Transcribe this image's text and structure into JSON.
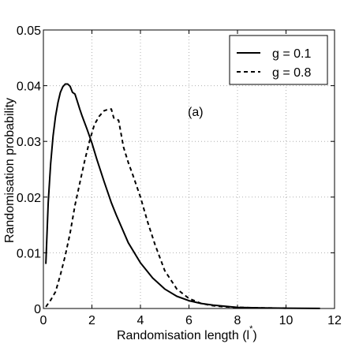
{
  "chart_data": {
    "type": "line",
    "xlabel": "Randomisation length (l",
    "xlabel_super": "*",
    "xlabel_close": ")",
    "ylabel": "Randomisation probability",
    "xlim": [
      0,
      12
    ],
    "ylim": [
      0,
      0.05
    ],
    "xticks": [
      0,
      2,
      4,
      6,
      8,
      10,
      12
    ],
    "xtick_labels": [
      "0",
      "2",
      "4",
      "6",
      "8",
      "10",
      "12"
    ],
    "yticks": [
      0,
      0.01,
      0.02,
      0.03,
      0.04,
      0.05
    ],
    "ytick_labels": [
      "0",
      "0.01",
      "0.02",
      "0.03",
      "0.04",
      "0.05"
    ],
    "grid": true,
    "legend_position": "top-right",
    "annotation": "(a)",
    "series": [
      {
        "name": "g = 0.1",
        "style": "solid",
        "x": [
          0.1,
          0.2,
          0.3,
          0.4,
          0.5,
          0.6,
          0.7,
          0.8,
          0.9,
          1.0,
          1.1,
          1.2,
          1.3,
          1.4,
          1.5,
          1.6,
          1.8,
          2.0,
          2.2,
          2.5,
          2.8,
          3.0,
          3.5,
          4.0,
          4.5,
          5.0,
          5.5,
          6.0,
          6.5,
          7.0,
          8.0,
          9.0,
          10.0,
          11.4
        ],
        "y": [
          0.008,
          0.019,
          0.026,
          0.031,
          0.0345,
          0.037,
          0.0388,
          0.0398,
          0.0403,
          0.0403,
          0.0399,
          0.0388,
          0.0385,
          0.0372,
          0.0358,
          0.0345,
          0.0322,
          0.0297,
          0.0268,
          0.0228,
          0.019,
          0.0168,
          0.0118,
          0.0082,
          0.0055,
          0.0035,
          0.0022,
          0.0014,
          0.0009,
          0.0006,
          0.0002,
          0.0001,
          5e-05,
          2e-05
        ]
      },
      {
        "name": "g = 0.8",
        "style": "dashed",
        "x": [
          0.1,
          0.3,
          0.5,
          0.7,
          0.9,
          1.1,
          1.3,
          1.5,
          1.7,
          1.9,
          2.1,
          2.3,
          2.5,
          2.7,
          2.8,
          2.9,
          3.1,
          3.3,
          3.5,
          3.7,
          4.0,
          4.3,
          4.6,
          5.0,
          5.5,
          6.0,
          6.5,
          7.0,
          7.5,
          8.0,
          9.0,
          10.0
        ],
        "y": [
          0.0003,
          0.0015,
          0.003,
          0.006,
          0.0095,
          0.0135,
          0.0185,
          0.0225,
          0.0265,
          0.03,
          0.033,
          0.0345,
          0.0355,
          0.0358,
          0.0358,
          0.0342,
          0.0338,
          0.029,
          0.0262,
          0.0238,
          0.02,
          0.0155,
          0.0115,
          0.0068,
          0.0035,
          0.0018,
          0.0009,
          0.0005,
          0.0003,
          0.0002,
          0.0001,
          5e-05
        ]
      }
    ]
  }
}
